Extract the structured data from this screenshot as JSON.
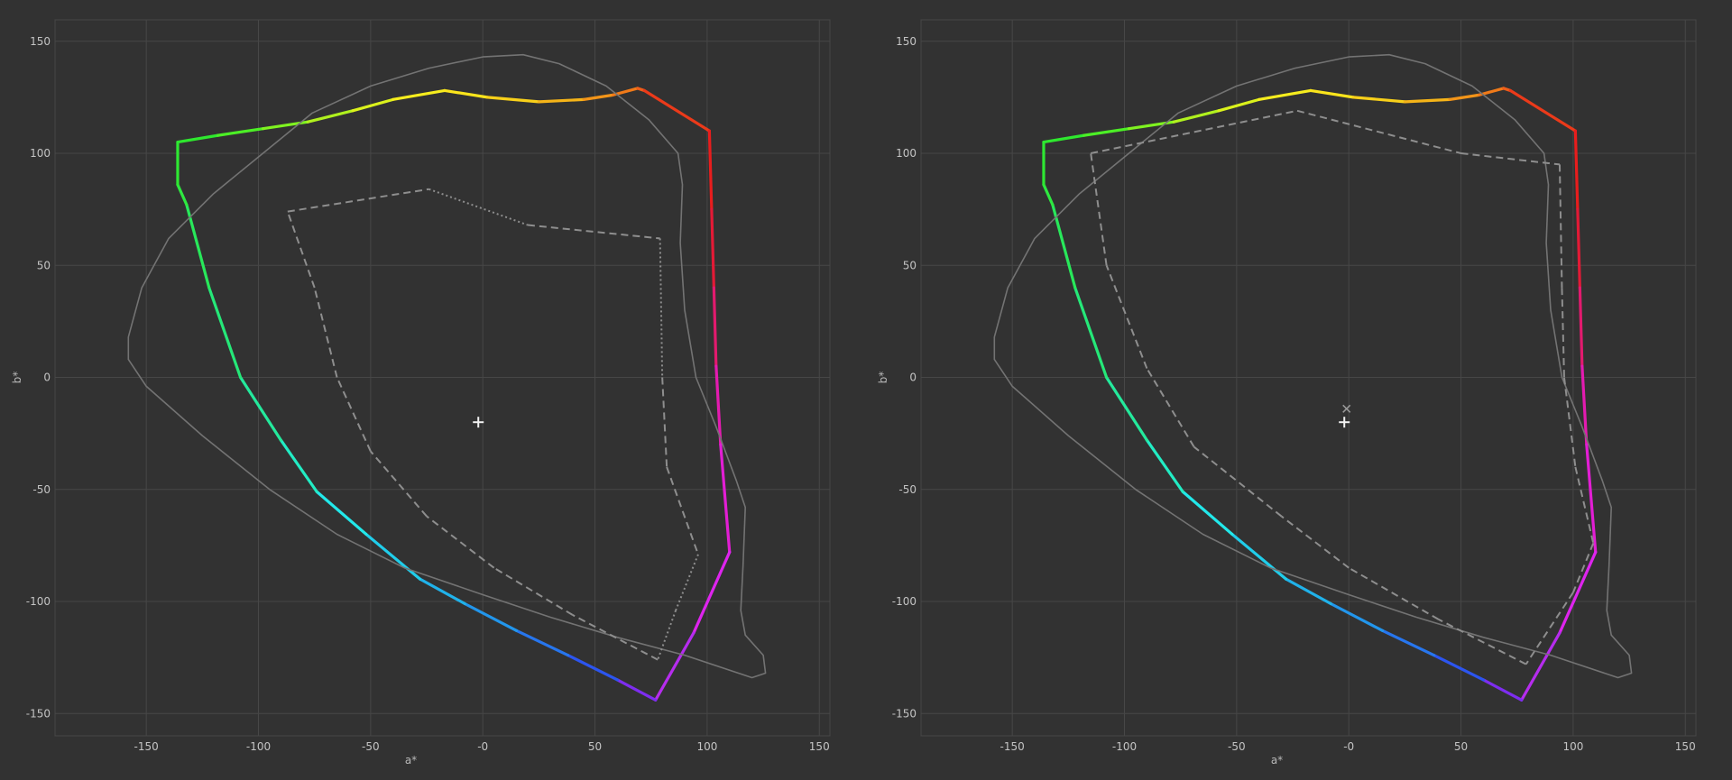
{
  "chart_data": [
    {
      "type": "line",
      "xlabel": "a*",
      "ylabel": "b*",
      "xlim": [
        -190,
        155
      ],
      "ylim": [
        -160,
        160
      ],
      "xticks": [
        -150,
        -100,
        -50,
        0,
        50,
        100,
        150
      ],
      "xtick_labels": [
        "-150",
        "-100",
        "-50",
        "-0",
        "50",
        "100",
        "150"
      ],
      "yticks": [
        150,
        100,
        50,
        0,
        -50,
        -100,
        -150
      ],
      "ytick_labels": [
        "150",
        "100",
        "50",
        "0",
        "-50",
        "-100",
        "-150"
      ],
      "grid": true,
      "series": [
        {
          "style": "colored",
          "closed": true,
          "points": [
            [
              -136,
              105
            ],
            [
              -118,
              108
            ],
            [
              -98,
              111
            ],
            [
              -78,
              114
            ],
            [
              -58,
              119
            ],
            [
              -40,
              124
            ],
            [
              -17,
              128
            ],
            [
              2,
              125
            ],
            [
              25,
              123
            ],
            [
              45,
              124
            ],
            [
              58,
              126
            ],
            [
              69,
              129
            ],
            [
              72,
              128
            ],
            [
              101,
              110
            ],
            [
              102,
              75
            ],
            [
              103,
              40
            ],
            [
              104,
              5
            ],
            [
              106,
              -30
            ],
            [
              110,
              -78
            ],
            [
              94,
              -114
            ],
            [
              77,
              -144
            ],
            [
              60,
              -135
            ],
            [
              38,
              -124
            ],
            [
              15,
              -113
            ],
            [
              -8,
              -101
            ],
            [
              -28,
              -90
            ],
            [
              -52,
              -70
            ],
            [
              -74,
              -51
            ],
            [
              -90,
              -28
            ],
            [
              -108,
              0
            ],
            [
              -122,
              40
            ],
            [
              -132,
              77
            ],
            [
              -136,
              86
            ],
            [
              -136,
              105
            ]
          ],
          "colors": [
            "#2ee82e",
            "#4cef26",
            "#7ff320",
            "#b0f11e",
            "#dbf21c",
            "#f6ed1e",
            "#fbe51c",
            "#f8d01a",
            "#f5b418",
            "#f39519",
            "#f07a19",
            "#ee5e1a",
            "#eb3a1a",
            "#e81d1d",
            "#e31a36",
            "#e21a6e",
            "#e31bb0",
            "#e21ed4",
            "#de24ee",
            "#b62cee",
            "#7e2df0",
            "#2c55f0",
            "#2776ee",
            "#2296ec",
            "#20b2ea",
            "#20cdea",
            "#22e8ea",
            "#22ecc4",
            "#24e99c",
            "#25e878",
            "#28e85a",
            "#2ee840",
            "#2ee832"
          ]
        },
        {
          "style": "solid",
          "closed": true,
          "points": [
            [
              -158,
              18
            ],
            [
              -152,
              40
            ],
            [
              -140,
              62
            ],
            [
              -120,
              82
            ],
            [
              -98,
              100
            ],
            [
              -76,
              118
            ],
            [
              -50,
              130
            ],
            [
              -24,
              138
            ],
            [
              0,
              143
            ],
            [
              18,
              144
            ],
            [
              34,
              140
            ],
            [
              55,
              130
            ],
            [
              74,
              115
            ],
            [
              87,
              100
            ],
            [
              89,
              86
            ],
            [
              88,
              60
            ],
            [
              90,
              30
            ],
            [
              95,
              0
            ],
            [
              104,
              -22
            ],
            [
              113,
              -46
            ],
            [
              117,
              -58
            ],
            [
              116,
              -84
            ],
            [
              115,
              -104
            ],
            [
              117,
              -115
            ],
            [
              125,
              -124
            ],
            [
              126,
              -132
            ],
            [
              120,
              -134
            ],
            [
              90,
              -124
            ],
            [
              60,
              -116
            ],
            [
              30,
              -107
            ],
            [
              0,
              -97
            ],
            [
              -35,
              -85
            ],
            [
              -65,
              -70
            ],
            [
              -95,
              -50
            ],
            [
              -125,
              -26
            ],
            [
              -150,
              -4
            ],
            [
              -158,
              8
            ],
            [
              -158,
              18
            ]
          ],
          "color": "#737373"
        },
        {
          "style": "dashed",
          "closed": true,
          "points": [
            [
              -87,
              74
            ],
            [
              -24,
              84
            ],
            [
              20,
              68
            ],
            [
              79,
              62
            ],
            [
              80,
              0
            ],
            [
              82,
              -40
            ],
            [
              96,
              -79
            ],
            [
              86,
              -104
            ],
            [
              78,
              -126
            ],
            [
              40,
              -106
            ],
            [
              5,
              -85
            ],
            [
              -25,
              -62
            ],
            [
              -50,
              -33
            ],
            [
              -65,
              0
            ],
            [
              -75,
              40
            ],
            [
              -87,
              74
            ]
          ],
          "dash": [
            [
              8,
              5
            ],
            [
              2,
              3
            ],
            [
              8,
              5
            ],
            [
              2,
              3
            ],
            [
              8,
              5
            ],
            [
              8,
              5
            ],
            [
              2,
              3
            ],
            [
              2,
              3
            ],
            [
              8,
              5
            ],
            [
              8,
              5
            ],
            [
              8,
              5
            ],
            [
              8,
              5
            ],
            [
              8,
              5
            ],
            [
              8,
              5
            ],
            [
              8,
              5
            ]
          ],
          "color": "#8e8e8e"
        }
      ],
      "markers": [
        {
          "type": "plus",
          "x": -2,
          "y": -20,
          "color": "#f2f2f2"
        }
      ]
    },
    {
      "type": "line",
      "xlabel": "a*",
      "ylabel": "b*",
      "xlim": [
        -190,
        155
      ],
      "ylim": [
        -160,
        160
      ],
      "xticks": [
        -150,
        -100,
        -50,
        0,
        50,
        100,
        150
      ],
      "xtick_labels": [
        "-150",
        "-100",
        "-50",
        "-0",
        "50",
        "100",
        "150"
      ],
      "yticks": [
        150,
        100,
        50,
        0,
        -50,
        -100,
        -150
      ],
      "ytick_labels": [
        "150",
        "100",
        "50",
        "0",
        "-50",
        "-100",
        "-150"
      ],
      "grid": true,
      "series": [
        {
          "style": "colored",
          "closed": true,
          "points": [
            [
              -136,
              105
            ],
            [
              -118,
              108
            ],
            [
              -98,
              111
            ],
            [
              -78,
              114
            ],
            [
              -58,
              119
            ],
            [
              -40,
              124
            ],
            [
              -17,
              128
            ],
            [
              2,
              125
            ],
            [
              25,
              123
            ],
            [
              45,
              124
            ],
            [
              58,
              126
            ],
            [
              69,
              129
            ],
            [
              72,
              128
            ],
            [
              101,
              110
            ],
            [
              102,
              75
            ],
            [
              103,
              40
            ],
            [
              104,
              5
            ],
            [
              106,
              -30
            ],
            [
              110,
              -78
            ],
            [
              94,
              -114
            ],
            [
              77,
              -144
            ],
            [
              60,
              -135
            ],
            [
              38,
              -124
            ],
            [
              15,
              -113
            ],
            [
              -8,
              -101
            ],
            [
              -28,
              -90
            ],
            [
              -52,
              -70
            ],
            [
              -74,
              -51
            ],
            [
              -90,
              -28
            ],
            [
              -108,
              0
            ],
            [
              -122,
              40
            ],
            [
              -132,
              77
            ],
            [
              -136,
              86
            ],
            [
              -136,
              105
            ]
          ],
          "colors": [
            "#2ee82e",
            "#4cef26",
            "#7ff320",
            "#b0f11e",
            "#dbf21c",
            "#f6ed1e",
            "#fbe51c",
            "#f8d01a",
            "#f5b418",
            "#f39519",
            "#f07a19",
            "#ee5e1a",
            "#eb3a1a",
            "#e81d1d",
            "#e31a36",
            "#e21a6e",
            "#e31bb0",
            "#e21ed4",
            "#de24ee",
            "#b62cee",
            "#7e2df0",
            "#2c55f0",
            "#2776ee",
            "#2296ec",
            "#20b2ea",
            "#20cdea",
            "#22e8ea",
            "#22ecc4",
            "#24e99c",
            "#25e878",
            "#28e85a",
            "#2ee840",
            "#2ee832"
          ]
        },
        {
          "style": "solid",
          "closed": true,
          "points": [
            [
              -158,
              18
            ],
            [
              -152,
              40
            ],
            [
              -140,
              62
            ],
            [
              -120,
              82
            ],
            [
              -98,
              100
            ],
            [
              -76,
              118
            ],
            [
              -50,
              130
            ],
            [
              -24,
              138
            ],
            [
              0,
              143
            ],
            [
              18,
              144
            ],
            [
              34,
              140
            ],
            [
              55,
              130
            ],
            [
              74,
              115
            ],
            [
              87,
              100
            ],
            [
              89,
              86
            ],
            [
              88,
              60
            ],
            [
              90,
              30
            ],
            [
              95,
              0
            ],
            [
              104,
              -22
            ],
            [
              113,
              -46
            ],
            [
              117,
              -58
            ],
            [
              116,
              -84
            ],
            [
              115,
              -104
            ],
            [
              117,
              -115
            ],
            [
              125,
              -124
            ],
            [
              126,
              -132
            ],
            [
              120,
              -134
            ],
            [
              90,
              -124
            ],
            [
              60,
              -116
            ],
            [
              30,
              -107
            ],
            [
              0,
              -97
            ],
            [
              -35,
              -85
            ],
            [
              -65,
              -70
            ],
            [
              -95,
              -50
            ],
            [
              -125,
              -26
            ],
            [
              -150,
              -4
            ],
            [
              -158,
              8
            ],
            [
              -158,
              18
            ]
          ],
          "color": "#737373"
        },
        {
          "style": "dashed",
          "closed": true,
          "points": [
            [
              -115,
              100
            ],
            [
              -23,
              119
            ],
            [
              50,
              100
            ],
            [
              94,
              95
            ],
            [
              95,
              40
            ],
            [
              96,
              0
            ],
            [
              101,
              -40
            ],
            [
              109,
              -74
            ],
            [
              100,
              -96
            ],
            [
              79,
              -128
            ],
            [
              40,
              -108
            ],
            [
              0,
              -85
            ],
            [
              -30,
              -62
            ],
            [
              -69,
              -31
            ],
            [
              -90,
              4
            ],
            [
              -108,
              50
            ],
            [
              -115,
              100
            ]
          ],
          "color": "#8e8e8e"
        }
      ],
      "markers": [
        {
          "type": "plus",
          "x": -2,
          "y": -20,
          "color": "#f2f2f2"
        },
        {
          "type": "x",
          "x": -1,
          "y": -14,
          "color": "#9a9a9a"
        }
      ]
    }
  ]
}
